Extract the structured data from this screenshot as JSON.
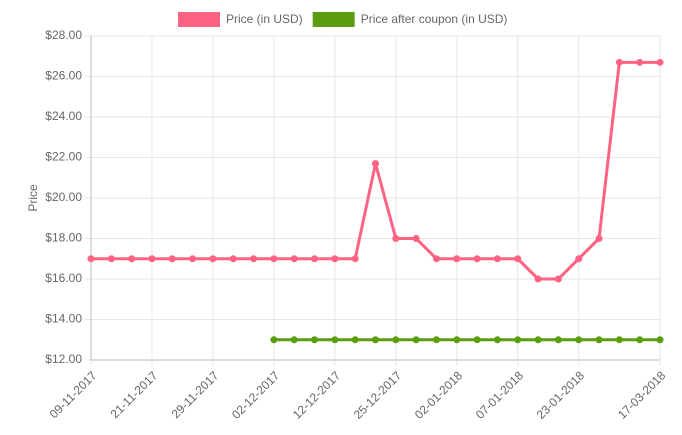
{
  "chart_data": {
    "type": "line",
    "y_label": "Price",
    "categories": [
      "09-11-2017",
      null,
      null,
      "21-11-2017",
      null,
      null,
      "29-11-2017",
      null,
      null,
      "02-12-2017",
      null,
      null,
      "12-12-2017",
      null,
      null,
      "25-12-2017",
      null,
      null,
      "02-01-2018",
      null,
      null,
      "07-01-2018",
      null,
      null,
      "23-01-2018",
      null,
      null,
      null,
      "17-03-2018"
    ],
    "series": [
      {
        "name": "Price (in USD)",
        "color": "#ff6384",
        "values": [
          17,
          17,
          17,
          17,
          17,
          17,
          17,
          17,
          17,
          17,
          17,
          17,
          17,
          17,
          21.7,
          18,
          18,
          17,
          17,
          17,
          17,
          17,
          16,
          16,
          17,
          18,
          26.7,
          26.7,
          26.7
        ]
      },
      {
        "name": "Price after coupon (in USD)",
        "color": "#5a9e0f",
        "values": [
          null,
          null,
          null,
          null,
          null,
          null,
          null,
          null,
          null,
          13,
          13,
          13,
          13,
          13,
          13,
          13,
          13,
          13,
          13,
          13,
          13,
          13,
          13,
          13,
          13,
          13,
          13,
          13,
          13
        ]
      }
    ],
    "ylim": [
      12,
      28
    ],
    "yticks": [
      {
        "value": 12,
        "label": "$12.00"
      },
      {
        "value": 14,
        "label": "$14.00"
      },
      {
        "value": 16,
        "label": "$16.00"
      },
      {
        "value": 18,
        "label": "$18.00"
      },
      {
        "value": 20,
        "label": "$20.00"
      },
      {
        "value": 22,
        "label": "$22.00"
      },
      {
        "value": 24,
        "label": "$24.00"
      },
      {
        "value": 26,
        "label": "$26.00"
      },
      {
        "value": 28,
        "label": "$28.00"
      }
    ],
    "grid": true,
    "legend": "top"
  }
}
